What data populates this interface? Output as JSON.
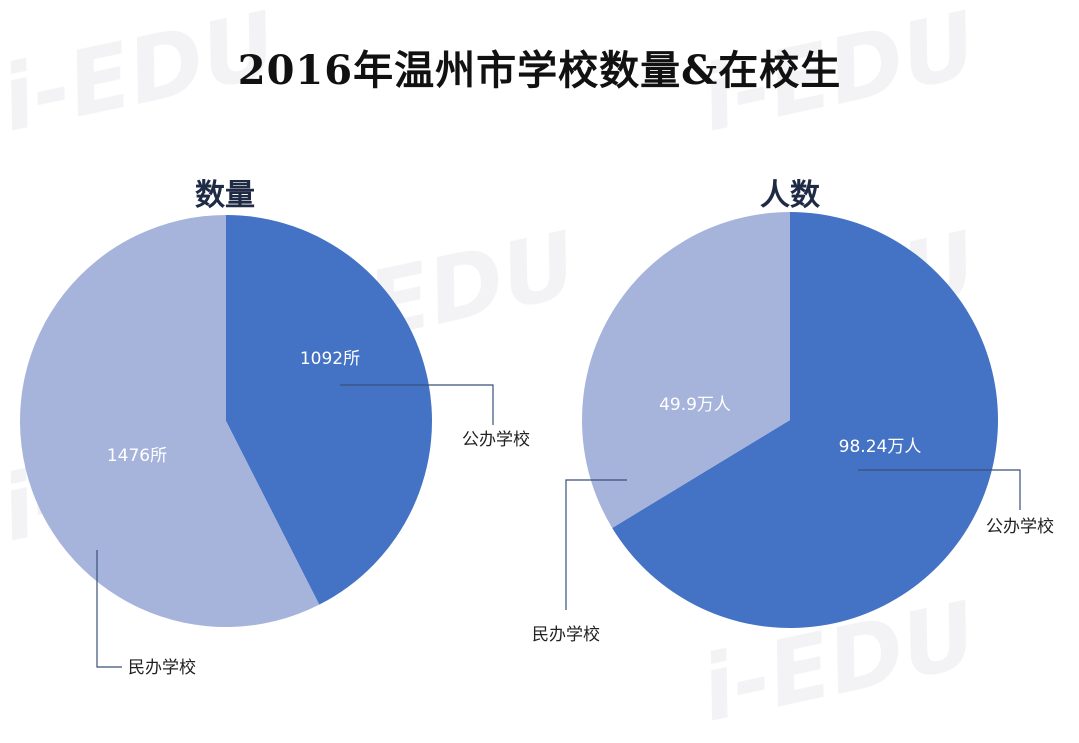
{
  "title": "2016年温州市学校数量&在校生",
  "watermark_text": "i-EDU",
  "colors": {
    "public": "#4472c4",
    "private": "#a6b4dc",
    "leader": "#3a4f7a",
    "label_on_slice": "#ffffff",
    "label_outside": "#222222"
  },
  "chart_data": [
    {
      "type": "pie",
      "title": "数量",
      "slices": [
        {
          "name": "公办学校",
          "value": 1092,
          "label": "1092所"
        },
        {
          "name": "民办学校",
          "value": 1476,
          "label": "1476所"
        }
      ]
    },
    {
      "type": "pie",
      "title": "人数",
      "slices": [
        {
          "name": "公办学校",
          "value": 98.24,
          "label": "98.24万人"
        },
        {
          "name": "民办学校",
          "value": 49.9,
          "label": "49.9万人"
        }
      ]
    }
  ]
}
